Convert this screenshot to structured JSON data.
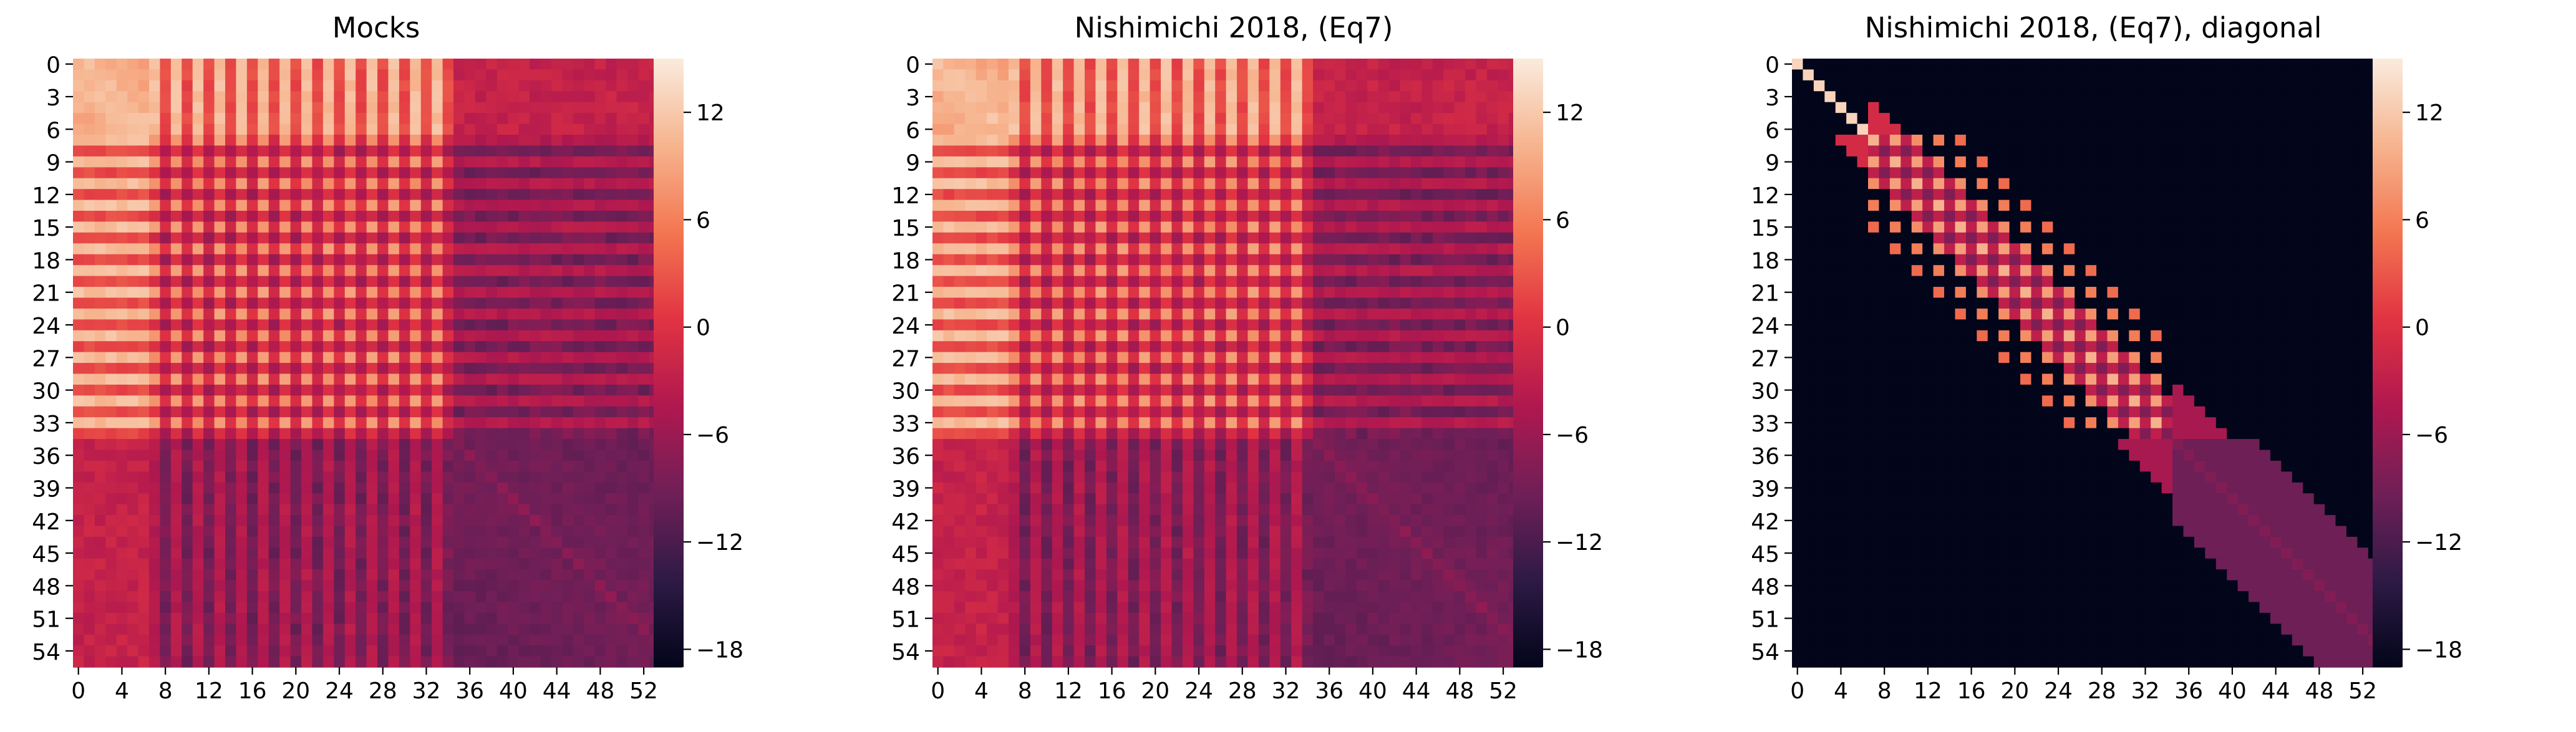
{
  "chart_data": [
    {
      "type": "heatmap",
      "title": "Mocks",
      "variant": "full",
      "size": 56,
      "xticks": [
        "0",
        "4",
        "8",
        "12",
        "16",
        "20",
        "24",
        "28",
        "32",
        "36",
        "40",
        "44",
        "48",
        "52"
      ],
      "yticks": [
        "0",
        "3",
        "6",
        "9",
        "12",
        "15",
        "18",
        "21",
        "24",
        "27",
        "30",
        "33",
        "36",
        "39",
        "42",
        "45",
        "48",
        "51",
        "54"
      ],
      "colorbar": {
        "range": [
          -19,
          15
        ],
        "ticks": [
          "12",
          "6",
          "0",
          "−6",
          "−12",
          "−18"
        ],
        "tick_values": [
          12,
          6,
          0,
          -6,
          -12,
          -18
        ]
      }
    },
    {
      "type": "heatmap",
      "title": "Nishimichi 2018, (Eq7)",
      "variant": "full",
      "size": 56,
      "xticks": [
        "0",
        "4",
        "8",
        "12",
        "16",
        "20",
        "24",
        "28",
        "32",
        "36",
        "40",
        "44",
        "48",
        "52"
      ],
      "yticks": [
        "0",
        "3",
        "6",
        "9",
        "12",
        "15",
        "18",
        "21",
        "24",
        "27",
        "30",
        "33",
        "36",
        "39",
        "42",
        "45",
        "48",
        "51",
        "54"
      ],
      "colorbar": {
        "range": [
          -19,
          15
        ],
        "ticks": [
          "12",
          "6",
          "0",
          "−6",
          "−12",
          "−18"
        ],
        "tick_values": [
          12,
          6,
          0,
          -6,
          -12,
          -18
        ]
      }
    },
    {
      "type": "heatmap",
      "title": "Nishimichi 2018, (Eq7), diagonal",
      "variant": "diagonal",
      "size": 56,
      "xticks": [
        "0",
        "4",
        "8",
        "12",
        "16",
        "20",
        "24",
        "28",
        "32",
        "36",
        "40",
        "44",
        "48",
        "52"
      ],
      "yticks": [
        "0",
        "3",
        "6",
        "9",
        "12",
        "15",
        "18",
        "21",
        "24",
        "27",
        "30",
        "33",
        "36",
        "39",
        "42",
        "45",
        "48",
        "51",
        "54"
      ],
      "colorbar": {
        "range": [
          -19,
          15
        ],
        "ticks": [
          "12",
          "6",
          "0",
          "−6",
          "−12",
          "−18"
        ],
        "tick_values": [
          12,
          6,
          0,
          -6,
          -12,
          -18
        ]
      }
    }
  ],
  "colors": {
    "colormap": [
      "#03051a",
      "#2e1a45",
      "#701f57",
      "#b0184f",
      "#e13342",
      "#f37651",
      "#f6b48e",
      "#faebdd"
    ]
  }
}
